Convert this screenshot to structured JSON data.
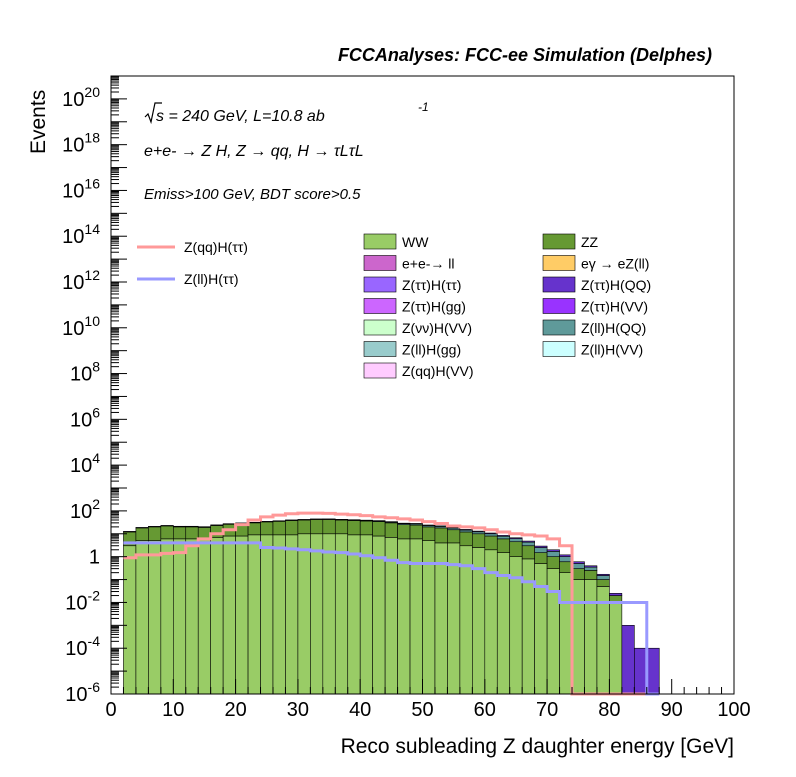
{
  "header": {
    "title": "FCCAnalyses: FCC-ee Simulation (Delphes)"
  },
  "annotations": {
    "sqrt_s": "s = 240 GeV, L=10.8 ab",
    "lumi_exp": "-1",
    "process": "e+e- → Z H, Z → qq, H → τLτL",
    "cuts": "Emiss>100 GeV, BDT score>0.5"
  },
  "chart_data": {
    "type": "bar",
    "xlabel": "Reco subleading Z daughter energy [GeV]",
    "ylabel": "Events",
    "xlim": [
      0,
      100
    ],
    "ylim": [
      1e-06,
      1e+21
    ],
    "ylog": true,
    "x_ticks": [
      "0",
      "10",
      "20",
      "30",
      "40",
      "50",
      "60",
      "70",
      "80",
      "90",
      "100"
    ],
    "y_ticks": [
      {
        "base": "10",
        "exp": "-6",
        "v": 1e-06
      },
      {
        "base": "10",
        "exp": "-4",
        "v": 0.0001
      },
      {
        "base": "10",
        "exp": "-2",
        "v": 0.01
      },
      {
        "base": "1",
        "exp": "",
        "v": 1
      },
      {
        "base": "10",
        "exp": "2",
        "v": 100.0
      },
      {
        "base": "10",
        "exp": "4",
        "v": 10000.0
      },
      {
        "base": "10",
        "exp": "6",
        "v": 1000000.0
      },
      {
        "base": "10",
        "exp": "8",
        "v": 100000000.0
      },
      {
        "base": "10",
        "exp": "10",
        "v": 10000000000.0
      },
      {
        "base": "10",
        "exp": "12",
        "v": 1000000000000.0
      },
      {
        "base": "10",
        "exp": "14",
        "v": 100000000000000.0
      },
      {
        "base": "10",
        "exp": "16",
        "v": 1e+16
      },
      {
        "base": "10",
        "exp": "18",
        "v": 1e+18
      },
      {
        "base": "10",
        "exp": "20",
        "v": 1e+20
      }
    ],
    "bin_edges": [
      2,
      4,
      6,
      8,
      10,
      12,
      14,
      16,
      18,
      20,
      22,
      24,
      26,
      28,
      30,
      32,
      34,
      36,
      38,
      40,
      42,
      44,
      46,
      48,
      50,
      52,
      54,
      56,
      58,
      60,
      62,
      64,
      66,
      68,
      70,
      72,
      74,
      76,
      78,
      80,
      82,
      84,
      86,
      88
    ],
    "stack_totals": [
      12,
      18,
      20,
      22,
      20,
      20,
      19,
      23,
      26,
      28,
      30,
      33,
      35,
      38,
      40,
      42,
      42,
      40,
      38,
      36,
      34,
      30,
      25,
      24,
      20,
      18,
      15,
      12,
      10,
      8,
      6,
      4.5,
      3,
      1.5,
      1,
      0.6,
      0.3,
      0.25,
      0.1,
      0.02,
      0.001,
      0.0001,
      0.0001
    ],
    "stack_layers": [
      {
        "name": "WW",
        "color": "#99cc66",
        "values": [
          3,
          5,
          5,
          6,
          6,
          6,
          6,
          7,
          8,
          8,
          9,
          9,
          9,
          9,
          10,
          10,
          10,
          10,
          9,
          9,
          8,
          7,
          6,
          6,
          5,
          4,
          4,
          3,
          2.5,
          2,
          1.5,
          1,
          0.8,
          0.5,
          0.3,
          0.2,
          0.1,
          0.1,
          0.05,
          0.01,
          0,
          0,
          0
        ]
      },
      {
        "name": "ZZ",
        "color": "#669933",
        "values": [
          9,
          13,
          15,
          16,
          14,
          14,
          13,
          16,
          18,
          20,
          21,
          24,
          26,
          29,
          30,
          32,
          32,
          30,
          29,
          27,
          26,
          23,
          19,
          18,
          15,
          14,
          11,
          9,
          7.5,
          6,
          4.5,
          3.5,
          2.2,
          1,
          0.7,
          0.4,
          0.2,
          0.15,
          0.05,
          0.01,
          0,
          0,
          0
        ]
      },
      {
        "name": "Z(ll)H(QQ)",
        "color": "#5f9a9a",
        "values": [
          0.4,
          0.5,
          0.6,
          0.6,
          0.7,
          0.7,
          0.8,
          0.8,
          0.9,
          1,
          1,
          1,
          1.2,
          1.3,
          1.4,
          1.5,
          1.6,
          1.8,
          2,
          2.2,
          2.4,
          2.6,
          2.8,
          3,
          3,
          3,
          2.8,
          2.5,
          2.2,
          2,
          1.8,
          1.6,
          1.3,
          1,
          0.7,
          0.4,
          0.2,
          0.1,
          0.05,
          0,
          0,
          0,
          0
        ]
      },
      {
        "name": "Z(ττ)H(QQ)",
        "color": "#6633cc",
        "values": [
          0.3,
          0.4,
          0.5,
          0.5,
          0.6,
          0.6,
          0.6,
          0.7,
          0.7,
          0.8,
          0.8,
          0.9,
          0.9,
          1,
          1,
          1,
          1.1,
          1.1,
          1.2,
          1.2,
          1.2,
          1.3,
          1.3,
          1.3,
          1.2,
          1.2,
          1.1,
          1,
          0.9,
          0.8,
          0.7,
          0.6,
          0.5,
          0.4,
          0.3,
          0.2,
          0.1,
          0.05,
          0.02,
          0.005,
          0.001,
          0.0001,
          0.0001
        ]
      }
    ],
    "legend": [
      {
        "label": "WW",
        "color": "#99cc66"
      },
      {
        "label": "ZZ",
        "color": "#669933"
      },
      {
        "label": "e+e-→ ll",
        "color": "#cc66cc"
      },
      {
        "label": "eγ → eZ(ll)",
        "color": "#ffcc66"
      },
      {
        "label": "Z(ττ)H(ττ)",
        "color": "#9966ff"
      },
      {
        "label": "Z(ττ)H(QQ)",
        "color": "#6633cc"
      },
      {
        "label": "Z(ττ)H(gg)",
        "color": "#cc66ff"
      },
      {
        "label": "Z(ττ)H(VV)",
        "color": "#9933ff"
      },
      {
        "label": "Z(νν)H(VV)",
        "color": "#ccffcc"
      },
      {
        "label": "Z(ll)H(QQ)",
        "color": "#5f9a9a"
      },
      {
        "label": "Z(ll)H(gg)",
        "color": "#99cccc"
      },
      {
        "label": "Z(ll)H(VV)",
        "color": "#ccffff"
      },
      {
        "label": "Z(qq)H(VV)",
        "color": "#ffccff"
      }
    ],
    "series": [
      {
        "name": "Z(qq)H(ττ)",
        "color": "#ff9999",
        "edges": [
          2,
          4,
          6,
          8,
          10,
          12,
          14,
          16,
          18,
          20,
          22,
          24,
          26,
          28,
          30,
          32,
          34,
          36,
          38,
          40,
          42,
          44,
          46,
          48,
          50,
          52,
          54,
          56,
          58,
          60,
          62,
          64,
          66,
          68,
          70,
          72,
          74,
          76,
          78,
          80,
          82,
          84,
          86,
          88
        ],
        "values": [
          0.9,
          1.2,
          1.2,
          1.4,
          1.5,
          3,
          6,
          10,
          15,
          25,
          40,
          55,
          65,
          75,
          80,
          80,
          78,
          72,
          68,
          62,
          55,
          50,
          45,
          40,
          34,
          28,
          22,
          20,
          18,
          15,
          12,
          10,
          9,
          8,
          6,
          3,
          1e-07,
          1e-07,
          1e-07,
          1e-07,
          1e-07,
          1e-07,
          1e-07
        ]
      },
      {
        "name": "Z(ll)H(ττ)",
        "color": "#9999ff",
        "edges": [
          2,
          4,
          6,
          8,
          10,
          12,
          14,
          16,
          18,
          20,
          22,
          24,
          26,
          28,
          30,
          32,
          34,
          36,
          38,
          40,
          42,
          44,
          46,
          48,
          50,
          52,
          54,
          56,
          58,
          60,
          62,
          64,
          66,
          68,
          70,
          72,
          74,
          76,
          78,
          80,
          82,
          84,
          86,
          88
        ],
        "values": [
          4,
          4,
          4,
          4,
          4,
          4,
          4,
          4,
          4,
          4,
          4,
          2.5,
          2.4,
          2.2,
          2,
          1.8,
          1.6,
          1.5,
          1.3,
          1.1,
          0.9,
          0.7,
          0.55,
          0.5,
          0.5,
          0.5,
          0.45,
          0.4,
          0.3,
          0.2,
          0.15,
          0.12,
          0.08,
          0.05,
          0.03,
          0.01,
          0.01,
          0.01,
          0.01,
          0.01,
          0.01,
          0.01,
          1e-07
        ]
      }
    ]
  }
}
